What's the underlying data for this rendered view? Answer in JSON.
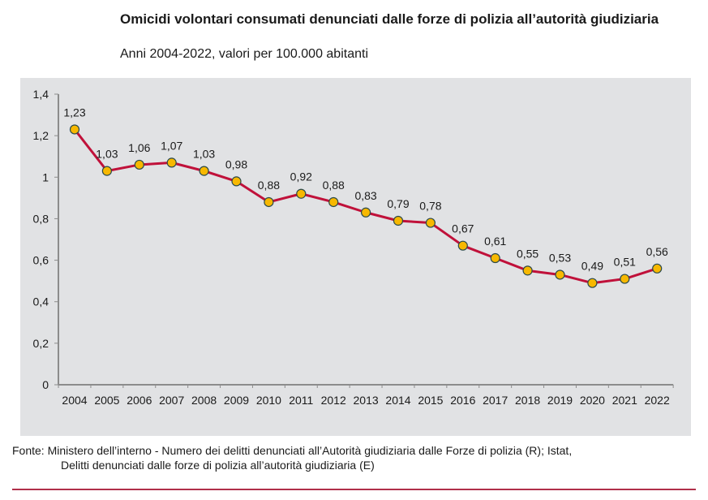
{
  "chart_data": {
    "type": "line",
    "title": "Omicidi volontari consumati denunciati dalle forze di polizia all’autorità giudiziaria",
    "subtitle": "Anni 2004-2022, valori per 100.000 abitanti",
    "xlabel": "",
    "ylabel": "",
    "categories": [
      "2004",
      "2005",
      "2006",
      "2007",
      "2008",
      "2009",
      "2010",
      "2011",
      "2012",
      "2013",
      "2014",
      "2015",
      "2016",
      "2017",
      "2018",
      "2019",
      "2020",
      "2021",
      "2022"
    ],
    "series": [
      {
        "name": "Omicidi volontari per 100.000 abitanti",
        "values": [
          1.23,
          1.03,
          1.06,
          1.07,
          1.03,
          0.98,
          0.88,
          0.92,
          0.88,
          0.83,
          0.79,
          0.78,
          0.67,
          0.61,
          0.55,
          0.53,
          0.49,
          0.51,
          0.56
        ],
        "labels": [
          "1,23",
          "1,03",
          "1,06",
          "1,07",
          "1,03",
          "0,98",
          "0,88",
          "0,92",
          "0,88",
          "0,83",
          "0,79",
          "0,78",
          "0,67",
          "0,61",
          "0,55",
          "0,53",
          "0,49",
          "0,51",
          "0,56"
        ]
      }
    ],
    "ylim": [
      0,
      1.4
    ],
    "yticks": [
      0,
      0.2,
      0.4,
      0.6,
      0.8,
      1,
      1.2,
      1.4
    ],
    "ytick_labels": [
      "0",
      "0,2",
      "0,4",
      "0,6",
      "0,8",
      "1",
      "1,2",
      "1,4"
    ],
    "grid": false,
    "legend": "none",
    "colors": {
      "line": "#c0113a",
      "marker_fill": "#f7b800",
      "marker_stroke": "#2c4a4a",
      "panel": "#e1e2e4",
      "axis": "#8c8c8c"
    }
  },
  "source": {
    "line1": "Fonte: Ministero dell’interno - Numero dei delitti denunciati all’Autorità giudiziaria dalle Forze di polizia (R); Istat,",
    "line2": "Delitti denunciati dalle forze di polizia all’autorità giudiziaria (E)"
  }
}
